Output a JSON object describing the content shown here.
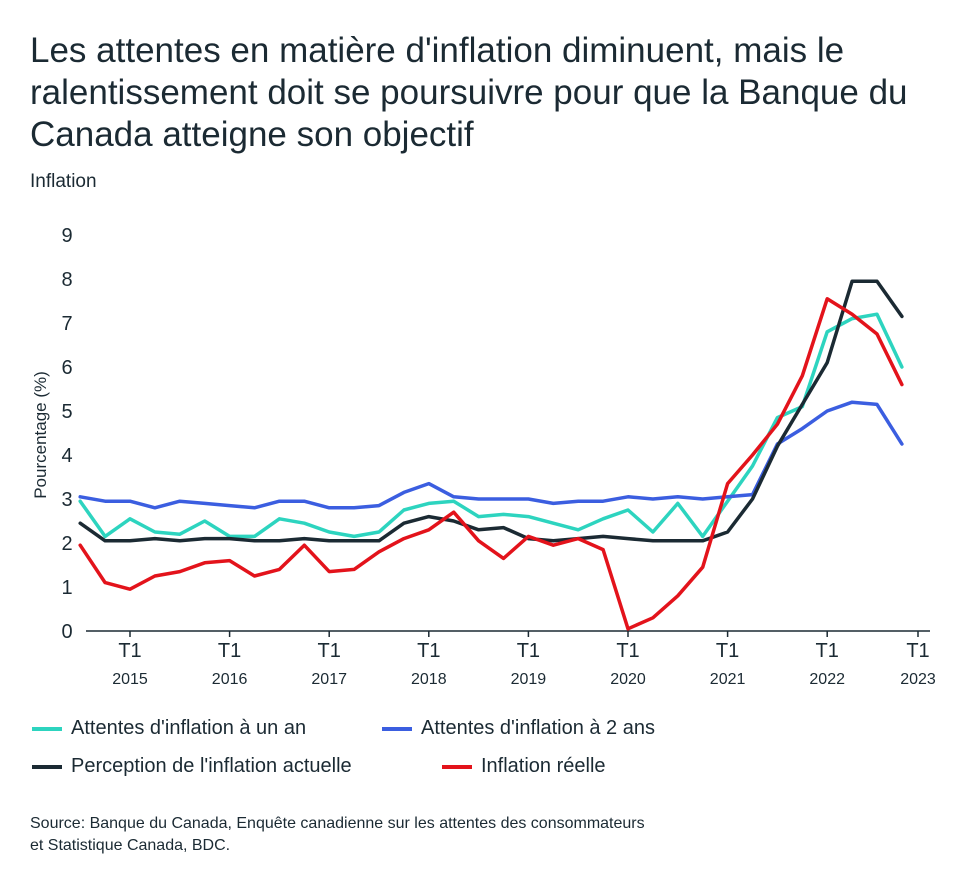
{
  "header": {
    "title": "Les attentes en matière d'inflation diminuent, mais le ralentissement doit se poursuivre pour que la Banque du Canada atteigne son objectif",
    "subtitle": "Inflation"
  },
  "chart_data": {
    "type": "line",
    "title": "Les attentes en matière d'inflation diminuent, mais le ralentissement doit se poursuivre pour que la Banque du Canada atteigne son objectif",
    "subtitle": "Inflation",
    "xlabel": "",
    "ylabel": "Pourcentage (%)",
    "ylim": [
      0,
      9
    ],
    "yticks": [
      "0",
      "1",
      "2",
      "3",
      "4",
      "5",
      "6",
      "7",
      "8",
      "9"
    ],
    "x_tick_labels": [
      {
        "quarter": "T1",
        "year": "2015"
      },
      {
        "quarter": "T1",
        "year": "2016"
      },
      {
        "quarter": "T1",
        "year": "2017"
      },
      {
        "quarter": "T1",
        "year": "2018"
      },
      {
        "quarter": "T1",
        "year": "2019"
      },
      {
        "quarter": "T1",
        "year": "2020"
      },
      {
        "quarter": "T1",
        "year": "2021"
      },
      {
        "quarter": "T1",
        "year": "2022"
      },
      {
        "quarter": "T1",
        "year": "2023"
      }
    ],
    "x": [
      "2014-T3",
      "2014-T4",
      "2015-T1",
      "2015-T2",
      "2015-T3",
      "2015-T4",
      "2016-T1",
      "2016-T2",
      "2016-T3",
      "2016-T4",
      "2017-T1",
      "2017-T2",
      "2017-T3",
      "2017-T4",
      "2018-T1",
      "2018-T2",
      "2018-T3",
      "2018-T4",
      "2019-T1",
      "2019-T2",
      "2019-T3",
      "2019-T4",
      "2020-T1",
      "2020-T2",
      "2020-T3",
      "2020-T4",
      "2021-T1",
      "2021-T2",
      "2021-T3",
      "2021-T4",
      "2022-T1",
      "2022-T2",
      "2022-T3",
      "2022-T4",
      "2023-T1"
    ],
    "grid": false,
    "legend_position": "bottom",
    "series": [
      {
        "name": "Attentes d'inflation à un an",
        "color": "#2dd4bf",
        "values": [
          2.95,
          2.15,
          2.55,
          2.25,
          2.2,
          2.5,
          2.15,
          2.15,
          2.55,
          2.45,
          2.25,
          2.15,
          2.25,
          2.75,
          2.9,
          2.95,
          2.6,
          2.65,
          2.6,
          2.45,
          2.3,
          2.55,
          2.75,
          2.25,
          2.9,
          2.15,
          2.95,
          3.75,
          4.85,
          5.1,
          6.8,
          7.1,
          7.2,
          6.0,
          null
        ]
      },
      {
        "name": "Attentes d'inflation à 2 ans",
        "color": "#3b5ee0",
        "values": [
          3.05,
          2.95,
          2.95,
          2.8,
          2.95,
          2.9,
          2.85,
          2.8,
          2.95,
          2.95,
          2.8,
          2.8,
          2.85,
          3.15,
          3.35,
          3.05,
          3.0,
          3.0,
          3.0,
          2.9,
          2.95,
          2.95,
          3.05,
          3.0,
          3.05,
          3.0,
          3.05,
          3.1,
          4.25,
          4.6,
          5.0,
          5.2,
          5.15,
          4.25,
          null
        ]
      },
      {
        "name": "Perception de l'inflation actuelle",
        "color": "#1b2a33",
        "values": [
          2.45,
          2.05,
          2.05,
          2.1,
          2.05,
          2.1,
          2.1,
          2.05,
          2.05,
          2.1,
          2.05,
          2.05,
          2.05,
          2.45,
          2.6,
          2.5,
          2.3,
          2.35,
          2.1,
          2.05,
          2.1,
          2.15,
          2.1,
          2.05,
          2.05,
          2.05,
          2.25,
          3.0,
          4.2,
          5.15,
          6.1,
          7.95,
          7.95,
          7.15,
          null
        ]
      },
      {
        "name": "Inflation réelle",
        "color": "#e3131b",
        "values": [
          1.95,
          1.1,
          0.95,
          1.25,
          1.35,
          1.55,
          1.6,
          1.25,
          1.4,
          1.95,
          1.35,
          1.4,
          1.8,
          2.1,
          2.3,
          2.7,
          2.05,
          1.65,
          2.15,
          1.95,
          2.1,
          1.85,
          0.05,
          0.3,
          0.8,
          1.45,
          3.35,
          4.0,
          4.7,
          5.8,
          7.55,
          7.2,
          6.75,
          5.6,
          null
        ]
      }
    ]
  },
  "source": {
    "line1": "Source: Banque du Canada, Enquête canadienne sur les attentes des consommateurs",
    "line2": "et Statistique Canada, BDC."
  }
}
